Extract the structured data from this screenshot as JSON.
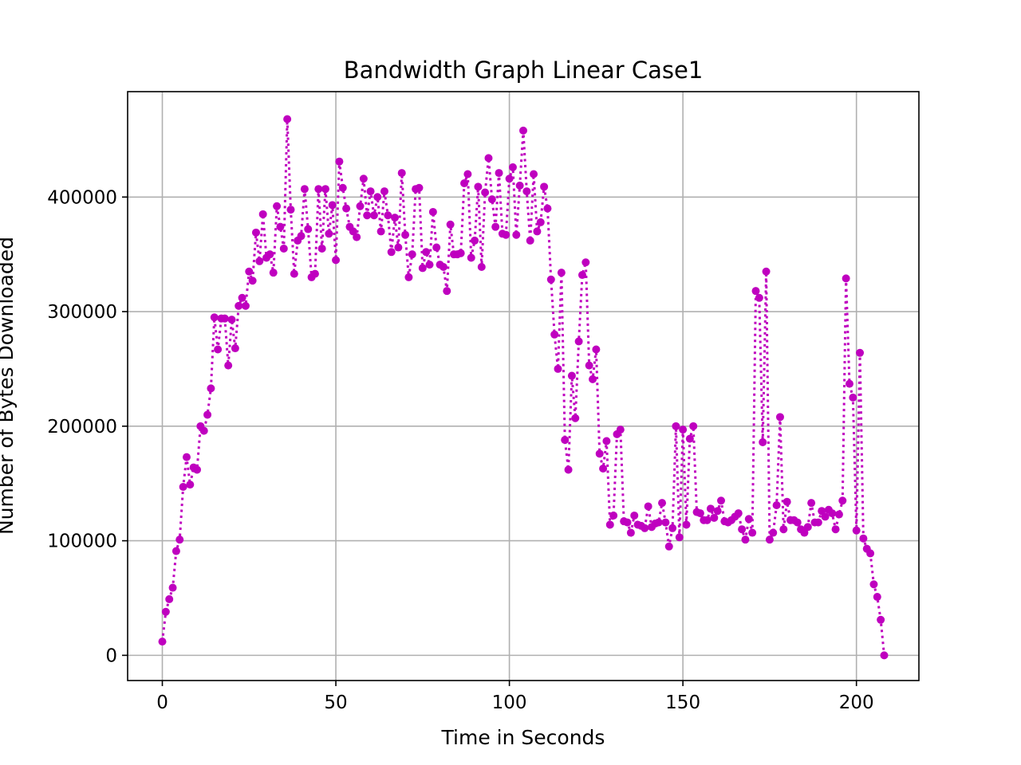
{
  "chart_data": {
    "type": "line",
    "title": "Bandwidth Graph Linear Case1",
    "xlabel": "Time in Seconds",
    "ylabel": "Number of Bytes Downloaded",
    "xlim": [
      -10,
      218
    ],
    "ylim": [
      -22000,
      492000
    ],
    "xticks": [
      0,
      50,
      100,
      150,
      200
    ],
    "xtick_labels": [
      "0",
      "50",
      "100",
      "150",
      "200"
    ],
    "yticks": [
      0,
      100000,
      200000,
      300000,
      400000
    ],
    "ytick_labels": [
      "0",
      "100000",
      "200000",
      "300000",
      "400000"
    ],
    "grid": true,
    "line_style": "dotted",
    "marker": "circle",
    "colors": {
      "series": "#bf00bf",
      "grid": "#b0b0b0",
      "axes": "#000000"
    },
    "series": [
      {
        "x": [
          0,
          1,
          2,
          3,
          4,
          5,
          6,
          7,
          8,
          9,
          10,
          11,
          12,
          13,
          14,
          15,
          16,
          17,
          18,
          19,
          20,
          21,
          22,
          23,
          24,
          25,
          26,
          27,
          28,
          29,
          30,
          31,
          32,
          33,
          34,
          35,
          36,
          37,
          38,
          39,
          40,
          41,
          42,
          43,
          44,
          45,
          46,
          47,
          48,
          49,
          50,
          51,
          52,
          53,
          54,
          55,
          56,
          57,
          58,
          59,
          60,
          61,
          62,
          63,
          64,
          65,
          66,
          67,
          68,
          69,
          70,
          71,
          72,
          73,
          74,
          75,
          76,
          77,
          78,
          79,
          80,
          81,
          82,
          83,
          84,
          85,
          86,
          87,
          88,
          89,
          90,
          91,
          92,
          93,
          94,
          95,
          96,
          97,
          98,
          99,
          100,
          101,
          102,
          103,
          104,
          105,
          106,
          107,
          108,
          109,
          110,
          111,
          112,
          113,
          114,
          115,
          116,
          117,
          118,
          119,
          120,
          121,
          122,
          123,
          124,
          125,
          126,
          127,
          128,
          129,
          130,
          131,
          132,
          133,
          134,
          135,
          136,
          137,
          138,
          139,
          140,
          141,
          142,
          143,
          144,
          145,
          146,
          147,
          148,
          149,
          150,
          151,
          152,
          153,
          154,
          155,
          156,
          157,
          158,
          159,
          160,
          161,
          162,
          163,
          164,
          165,
          166,
          167,
          168,
          169,
          170,
          171,
          172,
          173,
          174,
          175,
          176,
          177,
          178,
          179,
          180,
          181,
          182,
          183,
          184,
          185,
          186,
          187,
          188,
          189,
          190,
          191,
          192,
          193,
          194,
          195,
          196,
          197,
          198,
          199,
          200,
          201,
          202,
          203,
          204,
          205,
          206,
          207,
          208
        ],
        "y": [
          12000,
          38000,
          49000,
          59000,
          91000,
          101000,
          147000,
          173000,
          149000,
          164000,
          162000,
          200000,
          196000,
          210000,
          233000,
          295000,
          267000,
          294000,
          294000,
          253000,
          293000,
          268000,
          305000,
          312000,
          305000,
          335000,
          327000,
          369000,
          344000,
          385000,
          347000,
          350000,
          334000,
          392000,
          374000,
          355000,
          468000,
          389000,
          333000,
          362000,
          366000,
          407000,
          372000,
          330000,
          333000,
          407000,
          355000,
          407000,
          368000,
          393000,
          345000,
          431000,
          408000,
          390000,
          374000,
          370000,
          365000,
          392000,
          416000,
          384000,
          405000,
          384000,
          400000,
          370000,
          405000,
          384000,
          352000,
          382000,
          356000,
          421000,
          367000,
          330000,
          350000,
          407000,
          408000,
          338000,
          352000,
          341000,
          387000,
          356000,
          341000,
          339000,
          318000,
          376000,
          350000,
          350000,
          351000,
          412000,
          420000,
          347000,
          362000,
          409000,
          339000,
          404000,
          434000,
          398000,
          374000,
          421000,
          368000,
          367000,
          416000,
          426000,
          367000,
          410000,
          458000,
          405000,
          362000,
          420000,
          370000,
          378000,
          409000,
          390000,
          328000,
          280000,
          250000,
          334000,
          188000,
          162000,
          244000,
          207000,
          274000,
          332000,
          343000,
          253000,
          241000,
          267000,
          176000,
          163000,
          187000,
          114000,
          122000,
          193000,
          197000,
          117000,
          116000,
          107000,
          122000,
          114000,
          113000,
          111000,
          130000,
          112000,
          115000,
          116000,
          133000,
          116000,
          95000,
          111000,
          200000,
          103000,
          197000,
          114000,
          189000,
          200000,
          125000,
          124000,
          118000,
          118000,
          128000,
          120000,
          126000,
          135000,
          117000,
          116000,
          118000,
          121000,
          124000,
          110000,
          101000,
          119000,
          107000,
          318000,
          312000,
          186000,
          335000,
          101000,
          107000,
          131000,
          208000,
          110000,
          134000,
          118000,
          118000,
          116000,
          110000,
          107000,
          112000,
          133000,
          116000,
          116000,
          126000,
          121000,
          127000,
          124000,
          110000,
          123000,
          135000,
          329000,
          237000,
          225000,
          109000,
          264000,
          102000,
          93000,
          89000,
          62000,
          51000,
          31000,
          0
        ]
      }
    ]
  }
}
